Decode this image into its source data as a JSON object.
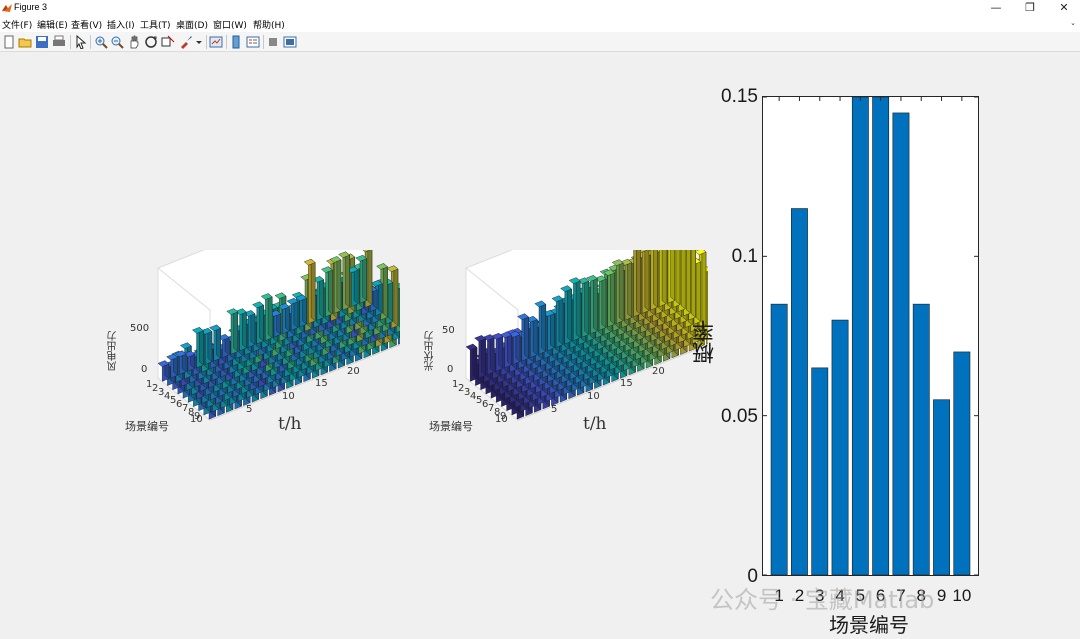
{
  "window": {
    "title": "Figure 3",
    "minimize_label": "—",
    "restore_label": "❐",
    "close_label": "✕"
  },
  "menu": {
    "items": [
      "文件(F)",
      "编辑(E)",
      "查看(V)",
      "插入(I)",
      "工具(T)",
      "桌面(D)",
      "窗口(W)",
      "帮助(H)"
    ],
    "overflow_label": "⌄"
  },
  "toolbar": {
    "icons": [
      "new-figure-icon",
      "open-icon",
      "save-icon",
      "print-icon",
      "pointer-icon",
      "zoom-in-icon",
      "zoom-out-icon",
      "pan-icon",
      "rotate-icon",
      "data-cursor-icon",
      "brush-icon",
      "brush-dropdown-icon",
      "link-icon",
      "colorbar-icon",
      "legend-icon",
      "hide-plot-tools-icon",
      "show-plot-tools-icon"
    ]
  },
  "plot_wind": {
    "zlabel": "风电出力",
    "ylabel": "场景编号",
    "xlabel": "t/h",
    "zticks": [
      "500",
      "0"
    ],
    "xticks": [
      "5",
      "10",
      "15",
      "20"
    ],
    "yticks": [
      "1",
      "2",
      "3",
      "4",
      "5",
      "6",
      "7",
      "8",
      "9",
      "10"
    ]
  },
  "plot_pv": {
    "zlabel": "光伏出力",
    "ylabel": "场景编号",
    "xlabel": "t/h",
    "zticks": [
      "50",
      "0"
    ],
    "xticks": [
      "5",
      "10",
      "15",
      "20"
    ],
    "yticks": [
      "1",
      "2",
      "3",
      "4",
      "5",
      "6",
      "7",
      "8",
      "9",
      "10"
    ]
  },
  "chart_data": [
    {
      "type": "bar",
      "title": "",
      "xlabel": "场景编号",
      "ylabel": "概率",
      "categories": [
        "1",
        "2",
        "3",
        "4",
        "5",
        "6",
        "7",
        "8",
        "9",
        "10"
      ],
      "values": [
        0.085,
        0.115,
        0.065,
        0.08,
        0.15,
        0.15,
        0.145,
        0.085,
        0.055,
        0.07
      ],
      "ylim": [
        0,
        0.15
      ],
      "yticks": [
        "0",
        "0.05",
        "0.1",
        "0.15"
      ],
      "bar_color": "#0072BD",
      "grid": false
    }
  ],
  "watermark": "公众号 · 宝藏Matlab"
}
